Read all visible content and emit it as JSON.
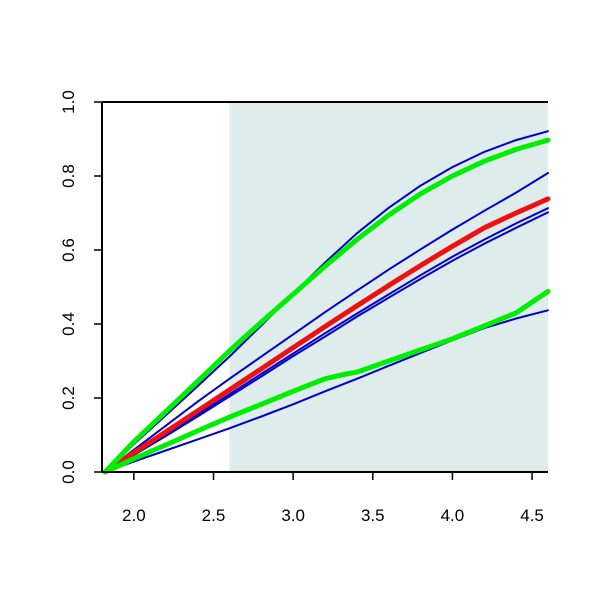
{
  "chart_data": {
    "type": "line",
    "xlim": [
      1.8,
      4.6
    ],
    "ylim": [
      0,
      1
    ],
    "shaded_region_x": [
      2.6,
      4.6
    ],
    "shade_color": "#dfecec",
    "x_ticks": [
      {
        "value": 2.0,
        "label": "2.0"
      },
      {
        "value": 2.5,
        "label": "2.5"
      },
      {
        "value": 3.0,
        "label": "3.0"
      },
      {
        "value": 3.5,
        "label": "3.5"
      },
      {
        "value": 4.0,
        "label": "4.0"
      },
      {
        "value": 4.5,
        "label": "4.5"
      }
    ],
    "y_ticks": [
      {
        "value": 0.0,
        "label": "0.0"
      },
      {
        "value": 0.2,
        "label": "0.2"
      },
      {
        "value": 0.4,
        "label": "0.4"
      },
      {
        "value": 0.6,
        "label": "0.6"
      },
      {
        "value": 0.8,
        "label": "0.8"
      },
      {
        "value": 1.0,
        "label": "1.0"
      }
    ],
    "grid": false,
    "series": [
      {
        "color": "#0000cc",
        "width": "thin",
        "points": [
          [
            1.82,
            0.0
          ],
          [
            2.0,
            0.075
          ],
          [
            2.2,
            0.153
          ],
          [
            2.4,
            0.232
          ],
          [
            2.6,
            0.312
          ],
          [
            2.8,
            0.396
          ],
          [
            3.0,
            0.482
          ],
          [
            3.2,
            0.566
          ],
          [
            3.4,
            0.645
          ],
          [
            3.6,
            0.714
          ],
          [
            3.8,
            0.774
          ],
          [
            4.0,
            0.824
          ],
          [
            4.2,
            0.865
          ],
          [
            4.4,
            0.897
          ],
          [
            4.6,
            0.921
          ]
        ]
      },
      {
        "color": "#0000cc",
        "width": "thin",
        "points": [
          [
            1.82,
            0.0
          ],
          [
            2.0,
            0.06
          ],
          [
            2.2,
            0.125
          ],
          [
            2.4,
            0.19
          ],
          [
            2.6,
            0.252
          ],
          [
            2.8,
            0.312
          ],
          [
            3.0,
            0.372
          ],
          [
            3.2,
            0.432
          ],
          [
            3.4,
            0.49
          ],
          [
            3.6,
            0.547
          ],
          [
            3.8,
            0.602
          ],
          [
            4.0,
            0.655
          ],
          [
            4.2,
            0.706
          ],
          [
            4.4,
            0.755
          ],
          [
            4.6,
            0.808
          ]
        ]
      },
      {
        "color": "#0000cc",
        "width": "thin",
        "points": [
          [
            1.82,
            0.0
          ],
          [
            2.0,
            0.048
          ],
          [
            2.2,
            0.1
          ],
          [
            2.4,
            0.155
          ],
          [
            2.6,
            0.21
          ],
          [
            2.8,
            0.265
          ],
          [
            3.0,
            0.32
          ],
          [
            3.2,
            0.375
          ],
          [
            3.4,
            0.428
          ],
          [
            3.6,
            0.48
          ],
          [
            3.8,
            0.532
          ],
          [
            4.0,
            0.582
          ],
          [
            4.2,
            0.628
          ],
          [
            4.4,
            0.672
          ],
          [
            4.6,
            0.713
          ]
        ]
      },
      {
        "color": "#0000cc",
        "width": "thin",
        "points": [
          [
            1.82,
            0.0
          ],
          [
            2.0,
            0.046
          ],
          [
            2.2,
            0.097
          ],
          [
            2.4,
            0.15
          ],
          [
            2.6,
            0.204
          ],
          [
            2.8,
            0.258
          ],
          [
            3.0,
            0.313
          ],
          [
            3.2,
            0.366
          ],
          [
            3.4,
            0.42
          ],
          [
            3.6,
            0.471
          ],
          [
            3.8,
            0.522
          ],
          [
            4.0,
            0.571
          ],
          [
            4.2,
            0.617
          ],
          [
            4.4,
            0.66
          ],
          [
            4.6,
            0.702
          ]
        ]
      },
      {
        "color": "#0000cc",
        "width": "thin",
        "points": [
          [
            1.82,
            0.0
          ],
          [
            2.0,
            0.028
          ],
          [
            2.2,
            0.058
          ],
          [
            2.4,
            0.088
          ],
          [
            2.6,
            0.118
          ],
          [
            2.8,
            0.15
          ],
          [
            3.0,
            0.183
          ],
          [
            3.2,
            0.218
          ],
          [
            3.4,
            0.252
          ],
          [
            3.6,
            0.287
          ],
          [
            3.8,
            0.322
          ],
          [
            4.0,
            0.356
          ],
          [
            4.2,
            0.389
          ],
          [
            4.4,
            0.415
          ],
          [
            4.6,
            0.437
          ]
        ]
      },
      {
        "color": "#ee1111",
        "width": "thick",
        "points": [
          [
            1.82,
            0.0
          ],
          [
            2.0,
            0.052
          ],
          [
            2.2,
            0.108
          ],
          [
            2.4,
            0.165
          ],
          [
            2.6,
            0.222
          ],
          [
            2.8,
            0.279
          ],
          [
            3.0,
            0.336
          ],
          [
            3.2,
            0.393
          ],
          [
            3.4,
            0.449
          ],
          [
            3.6,
            0.504
          ],
          [
            3.8,
            0.558
          ],
          [
            4.0,
            0.61
          ],
          [
            4.2,
            0.66
          ],
          [
            4.4,
            0.7
          ],
          [
            4.6,
            0.738
          ]
        ]
      },
      {
        "color": "#00ee00",
        "width": "thick",
        "points": [
          [
            1.82,
            0.0
          ],
          [
            2.0,
            0.082
          ],
          [
            2.2,
            0.163
          ],
          [
            2.4,
            0.245
          ],
          [
            2.6,
            0.327
          ],
          [
            2.8,
            0.405
          ],
          [
            3.0,
            0.48
          ],
          [
            3.2,
            0.556
          ],
          [
            3.4,
            0.628
          ],
          [
            3.6,
            0.694
          ],
          [
            3.8,
            0.752
          ],
          [
            4.0,
            0.8
          ],
          [
            4.2,
            0.84
          ],
          [
            4.4,
            0.872
          ],
          [
            4.6,
            0.897
          ]
        ]
      },
      {
        "color": "#00ee00",
        "width": "thick",
        "points": [
          [
            1.82,
            0.0
          ],
          [
            2.0,
            0.036
          ],
          [
            2.2,
            0.073
          ],
          [
            2.4,
            0.111
          ],
          [
            2.6,
            0.148
          ],
          [
            2.8,
            0.183
          ],
          [
            3.0,
            0.218
          ],
          [
            3.2,
            0.252
          ],
          [
            3.3,
            0.262
          ],
          [
            3.4,
            0.27
          ],
          [
            3.6,
            0.3
          ],
          [
            3.8,
            0.33
          ],
          [
            4.0,
            0.36
          ],
          [
            4.2,
            0.395
          ],
          [
            4.4,
            0.43
          ],
          [
            4.6,
            0.488
          ]
        ]
      }
    ]
  }
}
